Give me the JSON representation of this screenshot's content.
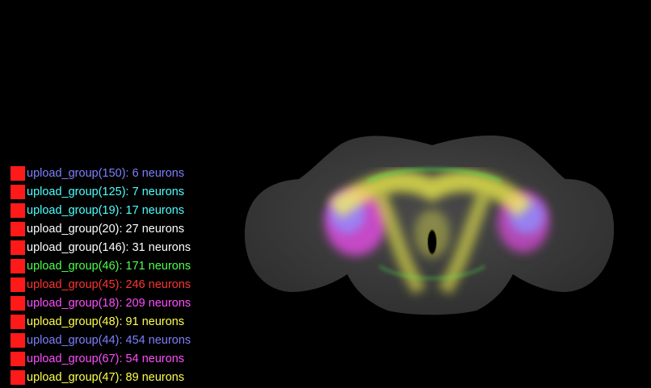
{
  "legend": {
    "items": [
      {
        "label": "upload_group(150): 6 neurons",
        "color": "#7f7fff"
      },
      {
        "label": "upload_group(125): 7 neurons",
        "color": "#4dffff"
      },
      {
        "label": "upload_group(19): 17 neurons",
        "color": "#4dffff"
      },
      {
        "label": "upload_group(20): 27 neurons",
        "color": "#ffffff"
      },
      {
        "label": "upload_group(146): 31 neurons",
        "color": "#ffffff"
      },
      {
        "label": "upload_group(46): 171 neurons",
        "color": "#4dff4d"
      },
      {
        "label": "upload_group(45): 246 neurons",
        "color": "#ff3333"
      },
      {
        "label": "upload_group(18): 209 neurons",
        "color": "#ff4dff"
      },
      {
        "label": "upload_group(48): 91 neurons",
        "color": "#ffff4d"
      },
      {
        "label": "upload_group(44): 454 neurons",
        "color": "#7f7fff"
      },
      {
        "label": "upload_group(67): 54 neurons",
        "color": "#ff4dff"
      },
      {
        "label": "upload_group(47): 89 neurons",
        "color": "#ffff4d"
      }
    ]
  }
}
